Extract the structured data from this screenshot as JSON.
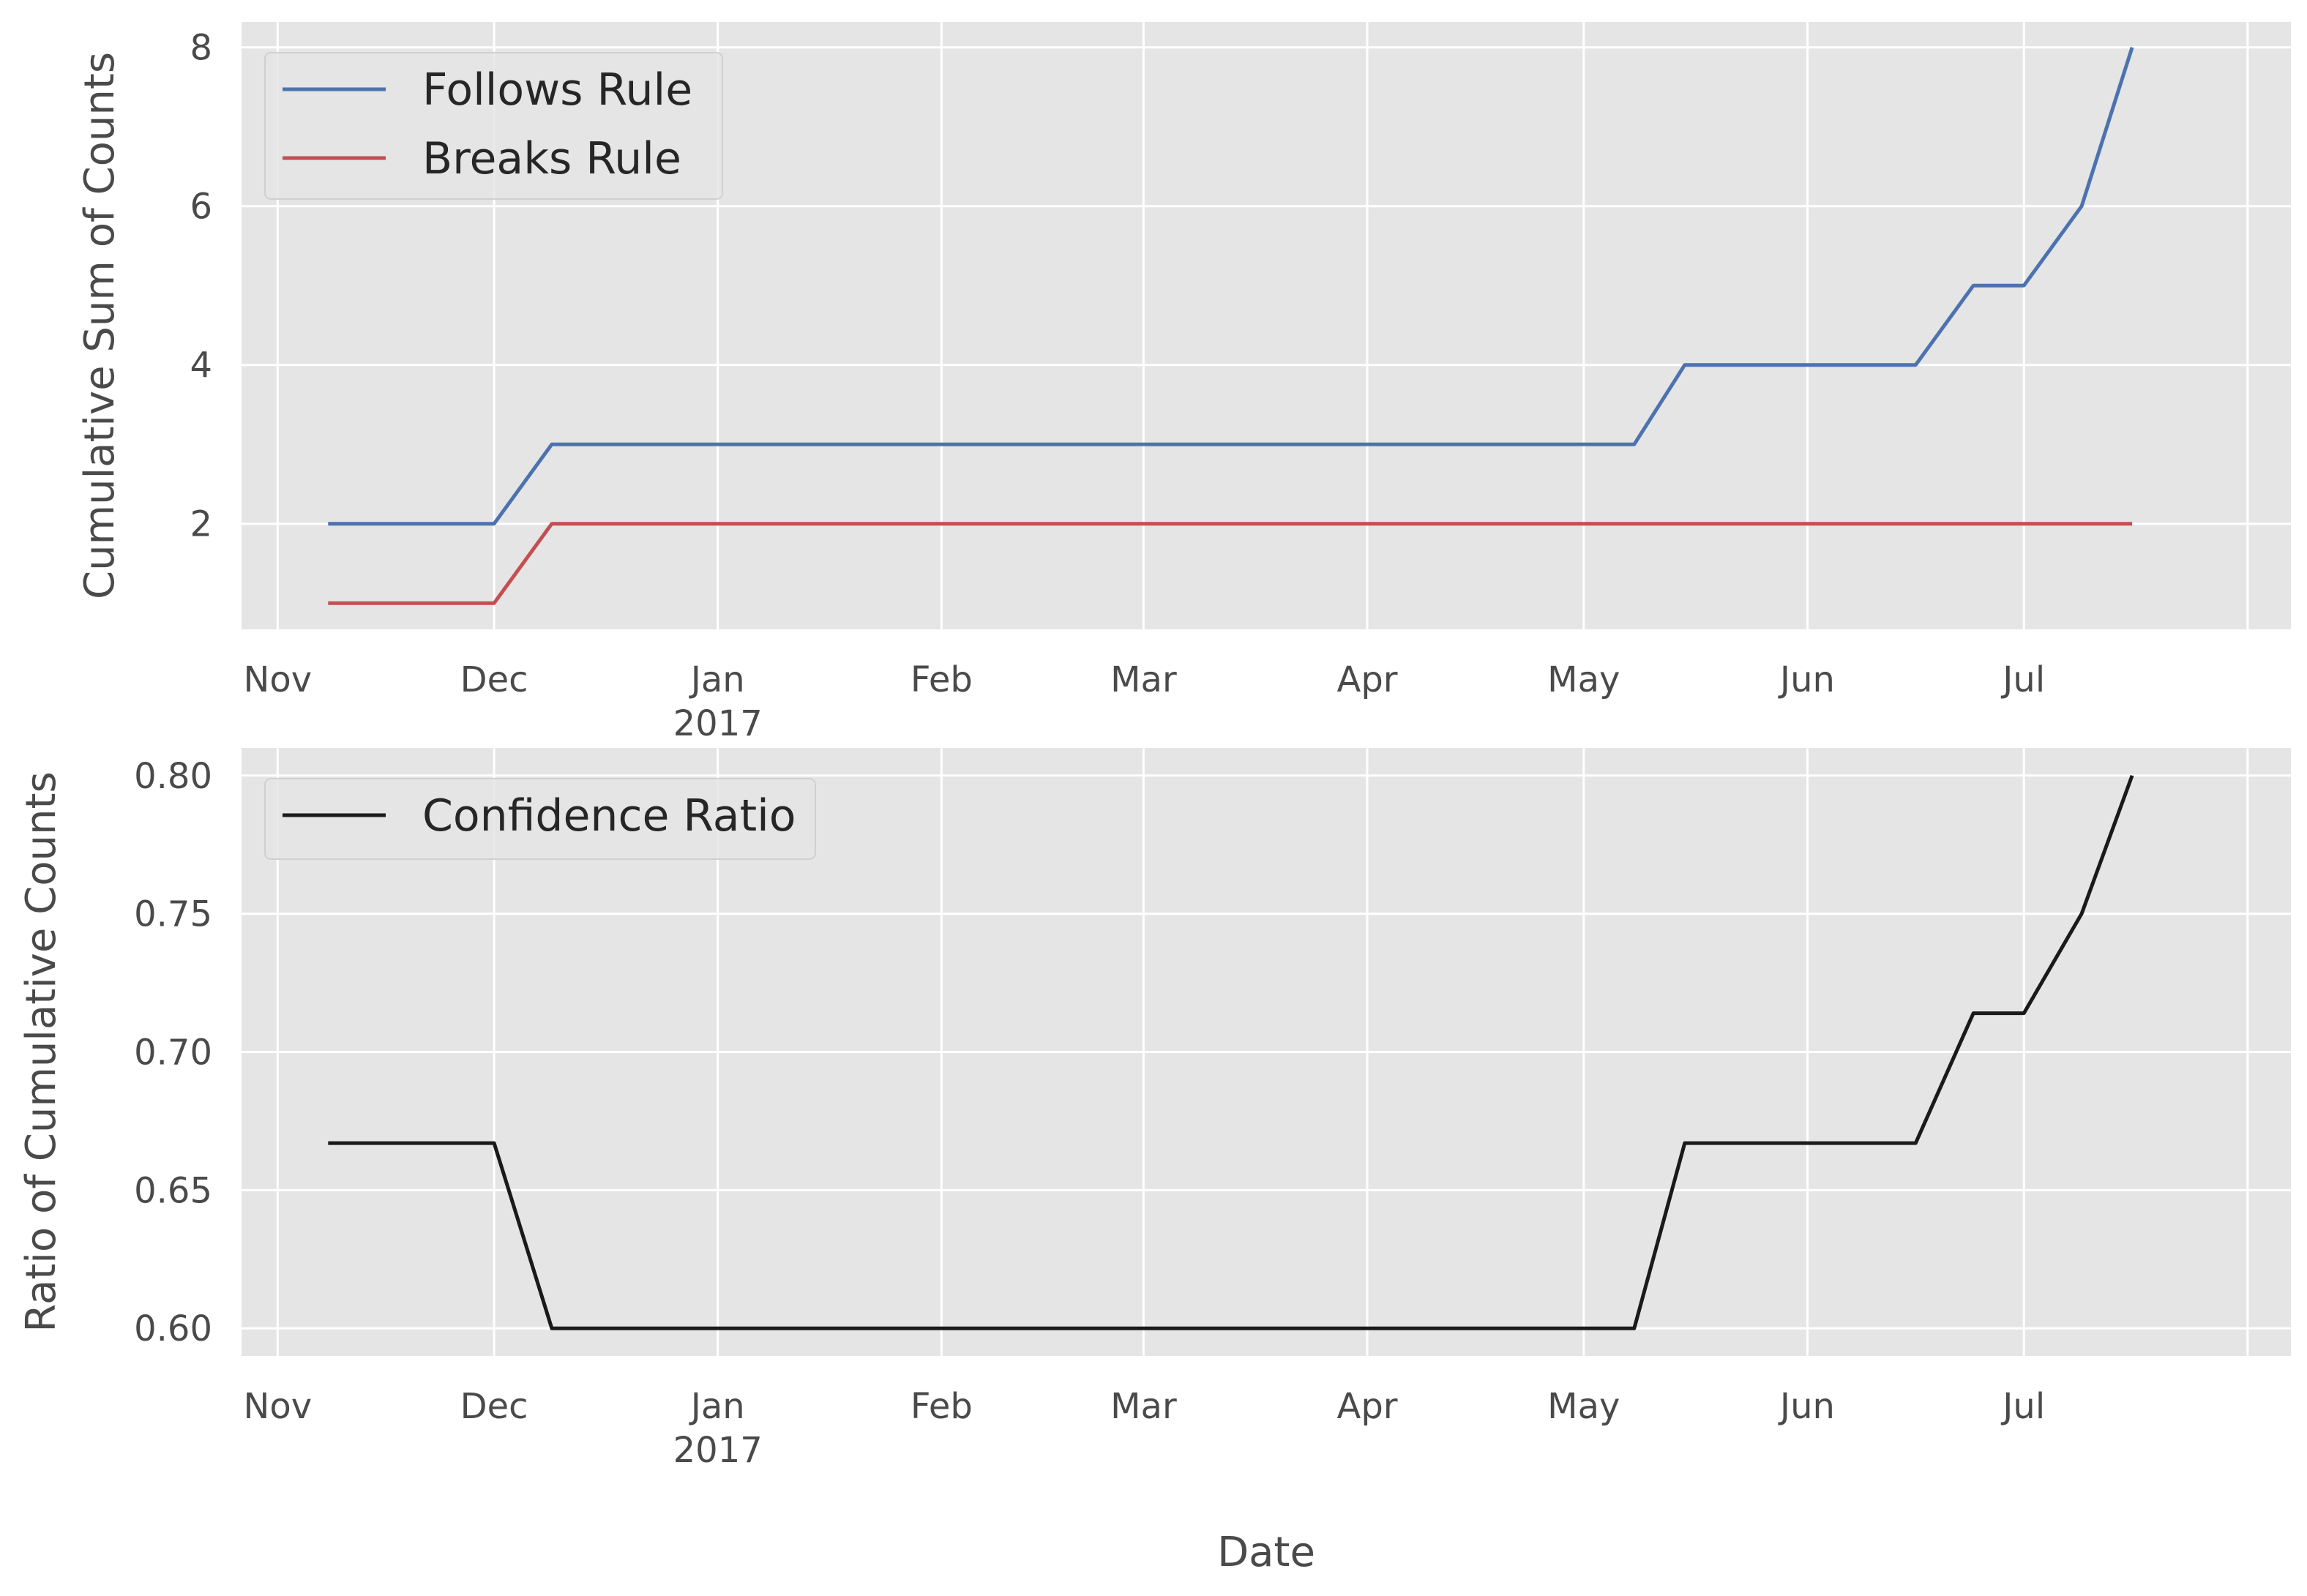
{
  "chart_data": [
    {
      "type": "line",
      "ylabel": "Cumulative Sum of Counts",
      "x_ticks": [
        {
          "date": "2016-11-01",
          "label": "Nov",
          "sub": ""
        },
        {
          "date": "2016-12-01",
          "label": "Dec",
          "sub": ""
        },
        {
          "date": "2017-01-01",
          "label": "Jan",
          "sub": "2017"
        },
        {
          "date": "2017-02-01",
          "label": "Feb",
          "sub": ""
        },
        {
          "date": "2017-03-01",
          "label": "Mar",
          "sub": ""
        },
        {
          "date": "2017-04-01",
          "label": "Apr",
          "sub": ""
        },
        {
          "date": "2017-05-01",
          "label": "May",
          "sub": ""
        },
        {
          "date": "2017-06-01",
          "label": "Jun",
          "sub": ""
        },
        {
          "date": "2017-07-01",
          "label": "Jul",
          "sub": ""
        },
        {
          "date": "2017-08-01",
          "label": "",
          "sub": ""
        }
      ],
      "y_ticks": [
        2,
        4,
        6,
        8
      ],
      "xlim": [
        "2016-10-27",
        "2017-08-07"
      ],
      "ylim": [
        0.67,
        8.32
      ],
      "grid": true,
      "legend_position": "top-left",
      "series": [
        {
          "name": "Follows Rule",
          "color": "#4c72b0",
          "points": [
            [
              "2016-11-08",
              2
            ],
            [
              "2016-12-01",
              2
            ],
            [
              "2016-12-09",
              3
            ],
            [
              "2017-05-08",
              3
            ],
            [
              "2017-05-15",
              4
            ],
            [
              "2017-06-16",
              4
            ],
            [
              "2017-06-24",
              5
            ],
            [
              "2017-07-01",
              5
            ],
            [
              "2017-07-09",
              6
            ],
            [
              "2017-07-16",
              8
            ]
          ]
        },
        {
          "name": "Breaks Rule",
          "color": "#c44e52",
          "points": [
            [
              "2016-11-08",
              1
            ],
            [
              "2016-12-01",
              1
            ],
            [
              "2016-12-09",
              2
            ],
            [
              "2017-07-16",
              2
            ]
          ]
        }
      ]
    },
    {
      "type": "line",
      "ylabel": "Ratio of Cumulative Counts",
      "xlabel": "Date",
      "x_ticks": [
        {
          "date": "2016-11-01",
          "label": "Nov",
          "sub": ""
        },
        {
          "date": "2016-12-01",
          "label": "Dec",
          "sub": ""
        },
        {
          "date": "2017-01-01",
          "label": "Jan",
          "sub": "2017"
        },
        {
          "date": "2017-02-01",
          "label": "Feb",
          "sub": ""
        },
        {
          "date": "2017-03-01",
          "label": "Mar",
          "sub": ""
        },
        {
          "date": "2017-04-01",
          "label": "Apr",
          "sub": ""
        },
        {
          "date": "2017-05-01",
          "label": "May",
          "sub": ""
        },
        {
          "date": "2017-06-01",
          "label": "Jun",
          "sub": ""
        },
        {
          "date": "2017-07-01",
          "label": "Jul",
          "sub": ""
        },
        {
          "date": "2017-08-01",
          "label": "",
          "sub": ""
        }
      ],
      "y_ticks": [
        "0.60",
        "0.65",
        "0.70",
        "0.75",
        "0.80"
      ],
      "xlim": [
        "2016-10-27",
        "2017-08-07"
      ],
      "ylim": [
        0.59,
        0.81
      ],
      "grid": true,
      "legend_position": "top-left",
      "series": [
        {
          "name": "Confidence Ratio",
          "color": "#1a1a1a",
          "points": [
            [
              "2016-11-08",
              0.667
            ],
            [
              "2016-12-01",
              0.667
            ],
            [
              "2016-12-09",
              0.6
            ],
            [
              "2017-05-08",
              0.6
            ],
            [
              "2017-05-15",
              0.667
            ],
            [
              "2017-06-16",
              0.667
            ],
            [
              "2017-06-24",
              0.714
            ],
            [
              "2017-07-01",
              0.714
            ],
            [
              "2017-07-09",
              0.75
            ],
            [
              "2017-07-16",
              0.8
            ]
          ]
        }
      ]
    }
  ]
}
